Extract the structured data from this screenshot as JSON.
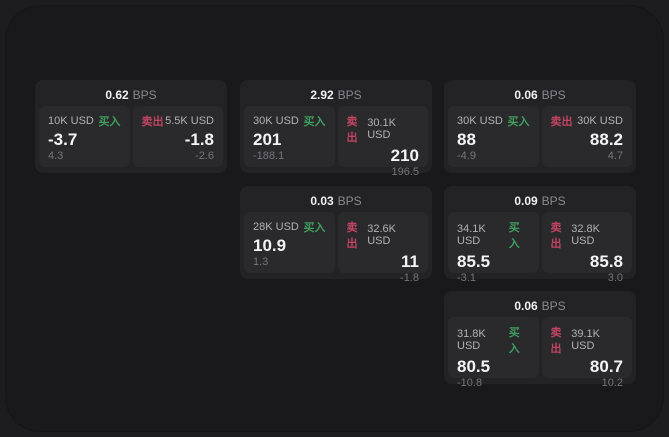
{
  "labels": {
    "bps_suffix": "BPS",
    "buy": "买入",
    "sell": "卖出"
  },
  "colors": {
    "buy": "#3f9e5e",
    "sell": "#c14563",
    "page_background": "#1d1d1f",
    "panel_background": "#19191b",
    "card_background": "#232325",
    "quote_panel_background": "#2a2a2c"
  },
  "cards": [
    {
      "bps": "0.62",
      "buy": {
        "size": "10K USD",
        "value": "-3.7",
        "delta": "4.3"
      },
      "sell": {
        "size": "5.5K USD",
        "value": "-1.8",
        "delta": "-2.6"
      }
    },
    {
      "bps": "2.92",
      "buy": {
        "size": "30K USD",
        "value": "201",
        "delta": "-188.1"
      },
      "sell": {
        "size": "30.1K USD",
        "value": "210",
        "delta": "196.5"
      }
    },
    {
      "bps": "0.06",
      "buy": {
        "size": "30K USD",
        "value": "88",
        "delta": "-4.9"
      },
      "sell": {
        "size": "30K USD",
        "value": "88.2",
        "delta": "4.7"
      }
    },
    {
      "bps": "0.03",
      "buy": {
        "size": "28K USD",
        "value": "10.9",
        "delta": "1.3"
      },
      "sell": {
        "size": "32.6K USD",
        "value": "11",
        "delta": "-1.8"
      }
    },
    {
      "bps": "0.09",
      "buy": {
        "size": "34.1K USD",
        "value": "85.5",
        "delta": "-3.1"
      },
      "sell": {
        "size": "32.8K USD",
        "value": "85.8",
        "delta": "3.0"
      }
    },
    {
      "bps": "0.06",
      "buy": {
        "size": "31.8K USD",
        "value": "80.5",
        "delta": "-10.8"
      },
      "sell": {
        "size": "39.1K USD",
        "value": "80.7",
        "delta": "10.2"
      }
    }
  ]
}
